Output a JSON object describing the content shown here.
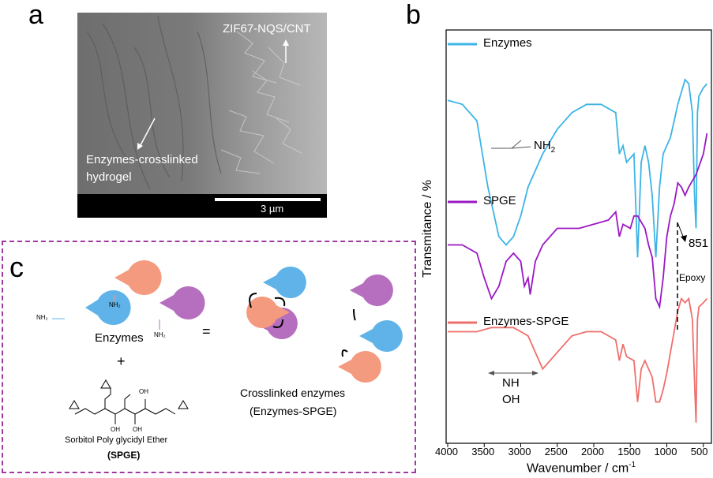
{
  "panel_labels": {
    "a": "a",
    "b": "b",
    "c": "c"
  },
  "panel_a": {
    "label_top": "ZIF67-NQS/CNT",
    "label_bottom_line1": "Enzymes-crosslinked",
    "label_bottom_line2": "hydrogel",
    "scale_bar": "3 µm"
  },
  "panel_b": {
    "ylabel": "Transmitance / %",
    "xlabel": "Wavenumber / cm",
    "xlabel_sup": "-1",
    "xticks": [
      "4000",
      "3500",
      "3000",
      "2500",
      "2000",
      "1500",
      "1000",
      "500"
    ],
    "legend": {
      "enzymes": "Enzymes",
      "spge": "SPGE",
      "enzymes_spge": "Enzymes-SPGE"
    },
    "annotations": {
      "nh2": "NH",
      "nh2_sub": "2",
      "peak_851": "851",
      "epoxy": "Epoxy",
      "nh": "NH",
      "oh": "OH"
    },
    "colors": {
      "enzymes": "#3db4e6",
      "spge": "#9b18c4",
      "enzymes_spge": "#ef6f6c"
    }
  },
  "panel_c": {
    "enzymes_label": "Enzymes",
    "plus": "+",
    "equals": "=",
    "nh2_label": "NH₂",
    "spge_name": "Sorbitol Poly glycidyl  Ether",
    "spge_abbr": "(SPGE)",
    "oh_label": "OH",
    "crosslinked_line1": "Crosslinked enzymes",
    "crosslinked_line2": "(Enzymes-SPGE)",
    "colors": {
      "blue": "#5fb3e8",
      "orange": "#f49a7e",
      "purple": "#b66ebe",
      "border": "#a03aa0"
    }
  },
  "chart_data": {
    "type": "line",
    "title": "",
    "xlabel": "Wavenumber / cm-1",
    "ylabel": "Transmitance / %",
    "xlim": [
      4000,
      400
    ],
    "series": [
      {
        "name": "Enzymes",
        "x": [
          4000,
          3800,
          3600,
          3450,
          3300,
          3200,
          3100,
          3000,
          2900,
          2700,
          2500,
          2300,
          2100,
          1900,
          1700,
          1650,
          1600,
          1550,
          1450,
          1400,
          1350,
          1300,
          1250,
          1200,
          1150,
          1100,
          1050,
          1000,
          950,
          900,
          850,
          800,
          750,
          700,
          650,
          620,
          600,
          580,
          560,
          500,
          450
        ],
        "y": [
          0.83,
          0.82,
          0.78,
          0.62,
          0.5,
          0.48,
          0.5,
          0.55,
          0.62,
          0.7,
          0.76,
          0.8,
          0.82,
          0.82,
          0.8,
          0.7,
          0.72,
          0.68,
          0.7,
          0.45,
          0.68,
          0.72,
          0.68,
          0.6,
          0.45,
          0.62,
          0.7,
          0.72,
          0.74,
          0.78,
          0.82,
          0.85,
          0.88,
          0.87,
          0.8,
          0.6,
          0.52,
          0.8,
          0.84,
          0.86,
          0.87
        ]
      },
      {
        "name": "SPGE",
        "x": [
          4000,
          3800,
          3600,
          3500,
          3400,
          3300,
          3200,
          3100,
          3000,
          2950,
          2900,
          2870,
          2800,
          2700,
          2500,
          2200,
          2000,
          1800,
          1700,
          1650,
          1600,
          1500,
          1450,
          1400,
          1300,
          1250,
          1200,
          1150,
          1100,
          1050,
          1000,
          950,
          900,
          850,
          800,
          750,
          700,
          600,
          500,
          450
        ],
        "y": [
          0.48,
          0.48,
          0.46,
          0.4,
          0.35,
          0.38,
          0.44,
          0.46,
          0.44,
          0.38,
          0.4,
          0.36,
          0.44,
          0.48,
          0.52,
          0.52,
          0.53,
          0.54,
          0.56,
          0.5,
          0.53,
          0.52,
          0.55,
          0.55,
          0.52,
          0.48,
          0.45,
          0.35,
          0.33,
          0.4,
          0.5,
          0.55,
          0.58,
          0.63,
          0.62,
          0.6,
          0.62,
          0.65,
          0.7,
          0.75
        ]
      },
      {
        "name": "Enzymes-SPGE",
        "x": [
          4000,
          3800,
          3600,
          3400,
          3300,
          3200,
          3100,
          3000,
          2900,
          2800,
          2700,
          2500,
          2300,
          2100,
          1900,
          1700,
          1650,
          1600,
          1550,
          1450,
          1400,
          1350,
          1300,
          1200,
          1150,
          1100,
          1050,
          1000,
          950,
          900,
          850,
          800,
          750,
          700,
          650,
          620,
          600,
          580,
          560,
          500,
          450
        ],
        "y": [
          0.27,
          0.27,
          0.27,
          0.28,
          0.28,
          0.28,
          0.28,
          0.27,
          0.26,
          0.22,
          0.18,
          0.22,
          0.26,
          0.27,
          0.27,
          0.25,
          0.2,
          0.24,
          0.21,
          0.2,
          0.1,
          0.18,
          0.2,
          0.16,
          0.1,
          0.1,
          0.13,
          0.17,
          0.22,
          0.27,
          0.32,
          0.35,
          0.34,
          0.35,
          0.3,
          0.15,
          0.05,
          0.3,
          0.33,
          0.34,
          0.35
        ]
      }
    ]
  }
}
